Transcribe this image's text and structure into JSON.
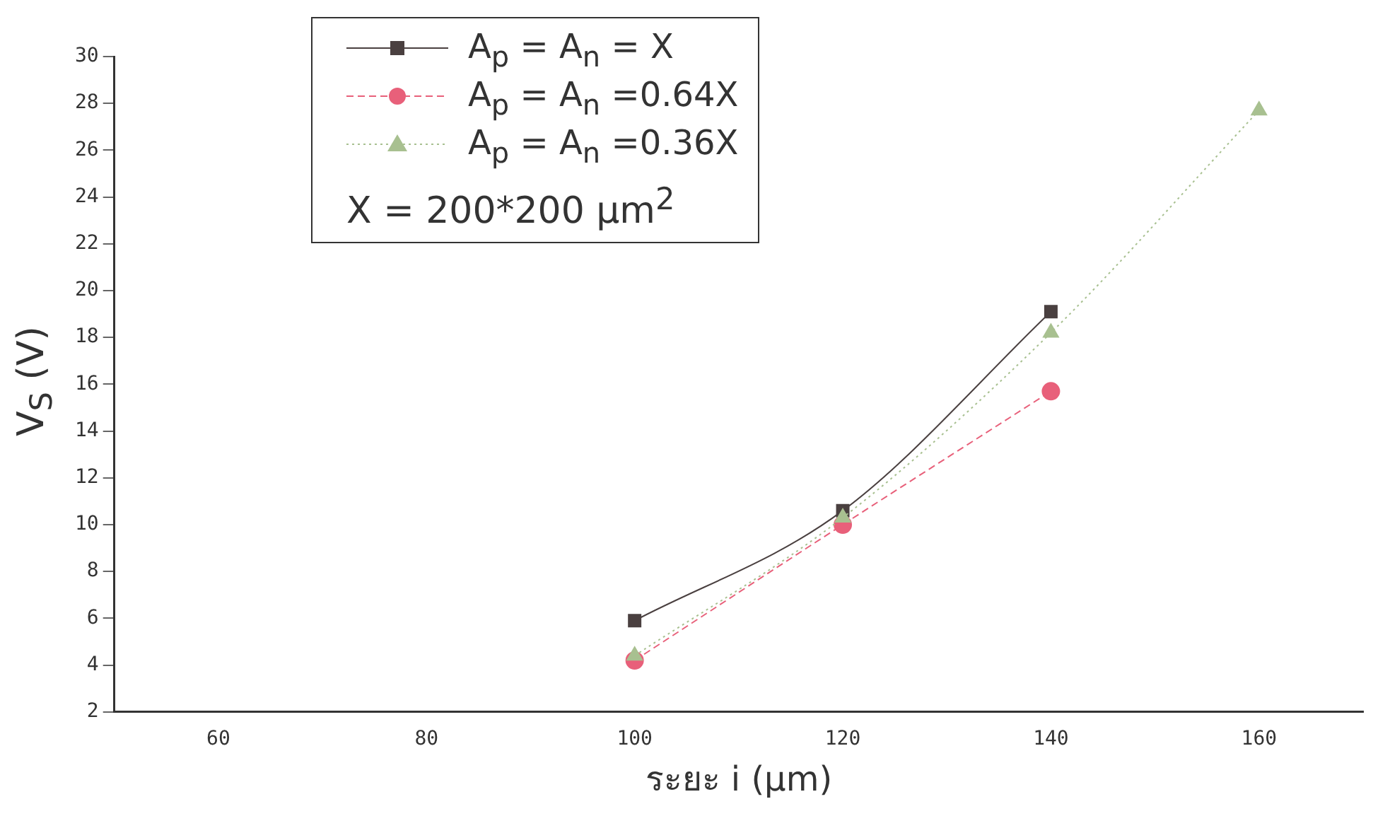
{
  "chart_data": {
    "type": "line",
    "xlabel": "ระยะ i (μm)",
    "ylabel": "V$_{S}$ (V)",
    "x": [
      100,
      120,
      140
    ],
    "series": [
      {
        "name": "A$_{p}$ = A$_{n}$ = X",
        "color": "#4a4040",
        "marker": "square",
        "line_style": "solid",
        "values": [
          5.9,
          10.6,
          19.1
        ]
      },
      {
        "name": "A$_{p}$ = A$_{n}$ =0.64X",
        "color": "#e8607a",
        "marker": "circle",
        "line_style": "dashed",
        "values": [
          4.2,
          10.0,
          15.7
        ]
      },
      {
        "name": "A$_{p}$ = A$_{n}$ =0.36X",
        "color": "#a8c090",
        "marker": "triangle",
        "line_style": "dotted",
        "x": [
          100,
          120,
          140,
          160
        ],
        "values": [
          4.4,
          10.3,
          18.2,
          27.7
        ]
      }
    ],
    "annotations": [
      "X = 200*200 μm$^{2}$"
    ],
    "xlim": [
      50,
      170
    ],
    "xticks": [
      60,
      80,
      100,
      120,
      140,
      160
    ],
    "ylim": [
      2,
      30
    ],
    "yticks": [
      2,
      4,
      6,
      8,
      10,
      12,
      14,
      16,
      18,
      20,
      22,
      24,
      26,
      28,
      30
    ],
    "legend": "top left",
    "grid": false
  }
}
